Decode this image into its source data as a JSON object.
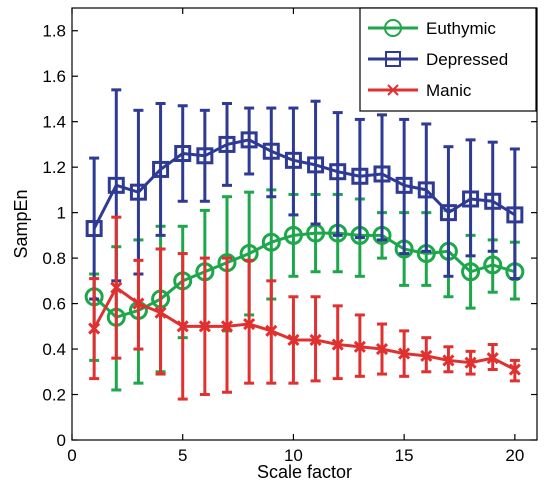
{
  "chart_data": {
    "type": "line",
    "title": "",
    "xlabel": "Scale factor",
    "ylabel": "SampEn",
    "xlim": [
      0,
      21
    ],
    "ylim": [
      0,
      1.9
    ],
    "xticks": [
      0,
      5,
      10,
      15,
      20
    ],
    "xtick_labels": [
      "0",
      "5",
      "10",
      "15",
      "20"
    ],
    "yticks": [
      0,
      0.2,
      0.4,
      0.6,
      0.8,
      1.0,
      1.2,
      1.4,
      1.6,
      1.8
    ],
    "ytick_labels": [
      "0",
      "0.2",
      "0.4",
      "0.6",
      "0.8",
      "1",
      "1.2",
      "1.4",
      "1.6",
      "1.8"
    ],
    "legend_position": "top-right",
    "grid": false,
    "x": [
      1,
      2,
      3,
      4,
      5,
      6,
      7,
      8,
      9,
      10,
      11,
      12,
      13,
      14,
      15,
      16,
      17,
      18,
      19,
      20
    ],
    "series": [
      {
        "name": "Euthymic",
        "color": "#1ea64b",
        "marker": "circle",
        "values": [
          0.63,
          0.54,
          0.57,
          0.62,
          0.7,
          0.74,
          0.78,
          0.82,
          0.87,
          0.9,
          0.91,
          0.91,
          0.9,
          0.9,
          0.84,
          0.82,
          0.83,
          0.74,
          0.77,
          0.74
        ],
        "err_low": [
          0.35,
          0.22,
          0.25,
          0.3,
          0.45,
          0.5,
          0.48,
          0.55,
          0.62,
          0.72,
          0.74,
          0.74,
          0.72,
          0.8,
          0.68,
          0.68,
          0.63,
          0.58,
          0.65,
          0.62
        ],
        "err_high": [
          0.73,
          0.85,
          0.88,
          0.94,
          0.94,
          1.01,
          1.07,
          1.09,
          1.1,
          1.08,
          1.08,
          1.08,
          1.06,
          1.0,
          1.0,
          1.0,
          1.01,
          0.9,
          0.88,
          0.87
        ]
      },
      {
        "name": "Depressed",
        "color": "#2e3a93",
        "marker": "square",
        "values": [
          0.93,
          1.12,
          1.09,
          1.19,
          1.26,
          1.25,
          1.3,
          1.32,
          1.27,
          1.23,
          1.21,
          1.18,
          1.16,
          1.17,
          1.12,
          1.1,
          1.0,
          1.06,
          1.05,
          0.99
        ],
        "err_low": [
          0.62,
          0.7,
          0.73,
          0.9,
          1.05,
          1.05,
          1.12,
          1.17,
          1.07,
          0.99,
          0.95,
          0.9,
          0.89,
          0.88,
          0.82,
          0.83,
          0.72,
          0.81,
          0.83,
          0.71
        ],
        "err_high": [
          1.24,
          1.54,
          1.45,
          1.48,
          1.47,
          1.45,
          1.48,
          1.46,
          1.46,
          1.46,
          1.49,
          1.44,
          1.41,
          1.43,
          1.41,
          1.39,
          1.29,
          1.32,
          1.31,
          1.28
        ]
      },
      {
        "name": "Manic",
        "color": "#e03030",
        "marker": "x",
        "values": [
          0.49,
          0.67,
          0.6,
          0.56,
          0.5,
          0.5,
          0.5,
          0.51,
          0.48,
          0.44,
          0.44,
          0.42,
          0.41,
          0.4,
          0.38,
          0.37,
          0.35,
          0.34,
          0.36,
          0.31
        ],
        "err_low": [
          0.27,
          0.36,
          0.4,
          0.29,
          0.18,
          0.2,
          0.21,
          0.25,
          0.25,
          0.25,
          0.26,
          0.27,
          0.28,
          0.29,
          0.28,
          0.3,
          0.3,
          0.29,
          0.31,
          0.26
        ],
        "err_high": [
          0.71,
          0.98,
          0.79,
          0.84,
          0.82,
          0.8,
          0.8,
          0.79,
          0.7,
          0.63,
          0.63,
          0.59,
          0.55,
          0.51,
          0.48,
          0.45,
          0.41,
          0.39,
          0.42,
          0.35
        ]
      }
    ]
  }
}
